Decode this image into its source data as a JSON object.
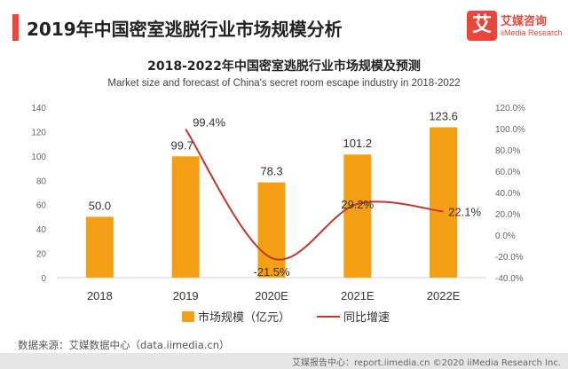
{
  "header": {
    "title": "2019年中国密室逃脱行业市场规模分析",
    "logo_char": "艾",
    "logo_cn": "艾媒咨询",
    "logo_en": "iiMedia Research"
  },
  "chart_data": {
    "type": "bar",
    "title": "2018-2022年中国密室逃脱行业市场规模及预测",
    "subtitle": "Market size and forecast of China's secret room escape industry in 2018-2022",
    "categories": [
      "2018",
      "2019",
      "2020E",
      "2021E",
      "2022E"
    ],
    "series": [
      {
        "name": "市场规模（亿元）",
        "type": "bar",
        "axis": "left",
        "values": [
          50.0,
          99.7,
          78.3,
          101.2,
          123.6
        ],
        "labels": [
          "50.0",
          "99.7",
          "78.3",
          "101.2",
          "123.6"
        ]
      },
      {
        "name": "同比增速",
        "type": "line",
        "axis": "right",
        "values": [
          null,
          99.4,
          -21.5,
          29.2,
          22.1
        ],
        "labels": [
          "",
          "99.4%",
          "-21.5%",
          "29.2%",
          "22.1%"
        ]
      }
    ],
    "ylim_left": [
      0,
      140
    ],
    "yticks_left": [
      0,
      20,
      40,
      60,
      80,
      100,
      120,
      140
    ],
    "ylim_right": [
      -40,
      120
    ],
    "yticks_right": [
      "-40.0%",
      "-20.0%",
      "0.0%",
      "20.0%",
      "40.0%",
      "60.0%",
      "80.0%",
      "100.0%",
      "120.0%"
    ],
    "yticks_right_values": [
      -40,
      -20,
      0,
      20,
      40,
      60,
      80,
      100,
      120
    ],
    "grid": false,
    "legend": "bottom",
    "colors": {
      "bar": "#f5a014",
      "line": "#c0392b"
    }
  },
  "source": "数据来源：艾媒数据中心（data.iimedia.cn）",
  "footer": "艾媒报告中心：report.iimedia.cn  ©2020  iiMedia Research  Inc."
}
